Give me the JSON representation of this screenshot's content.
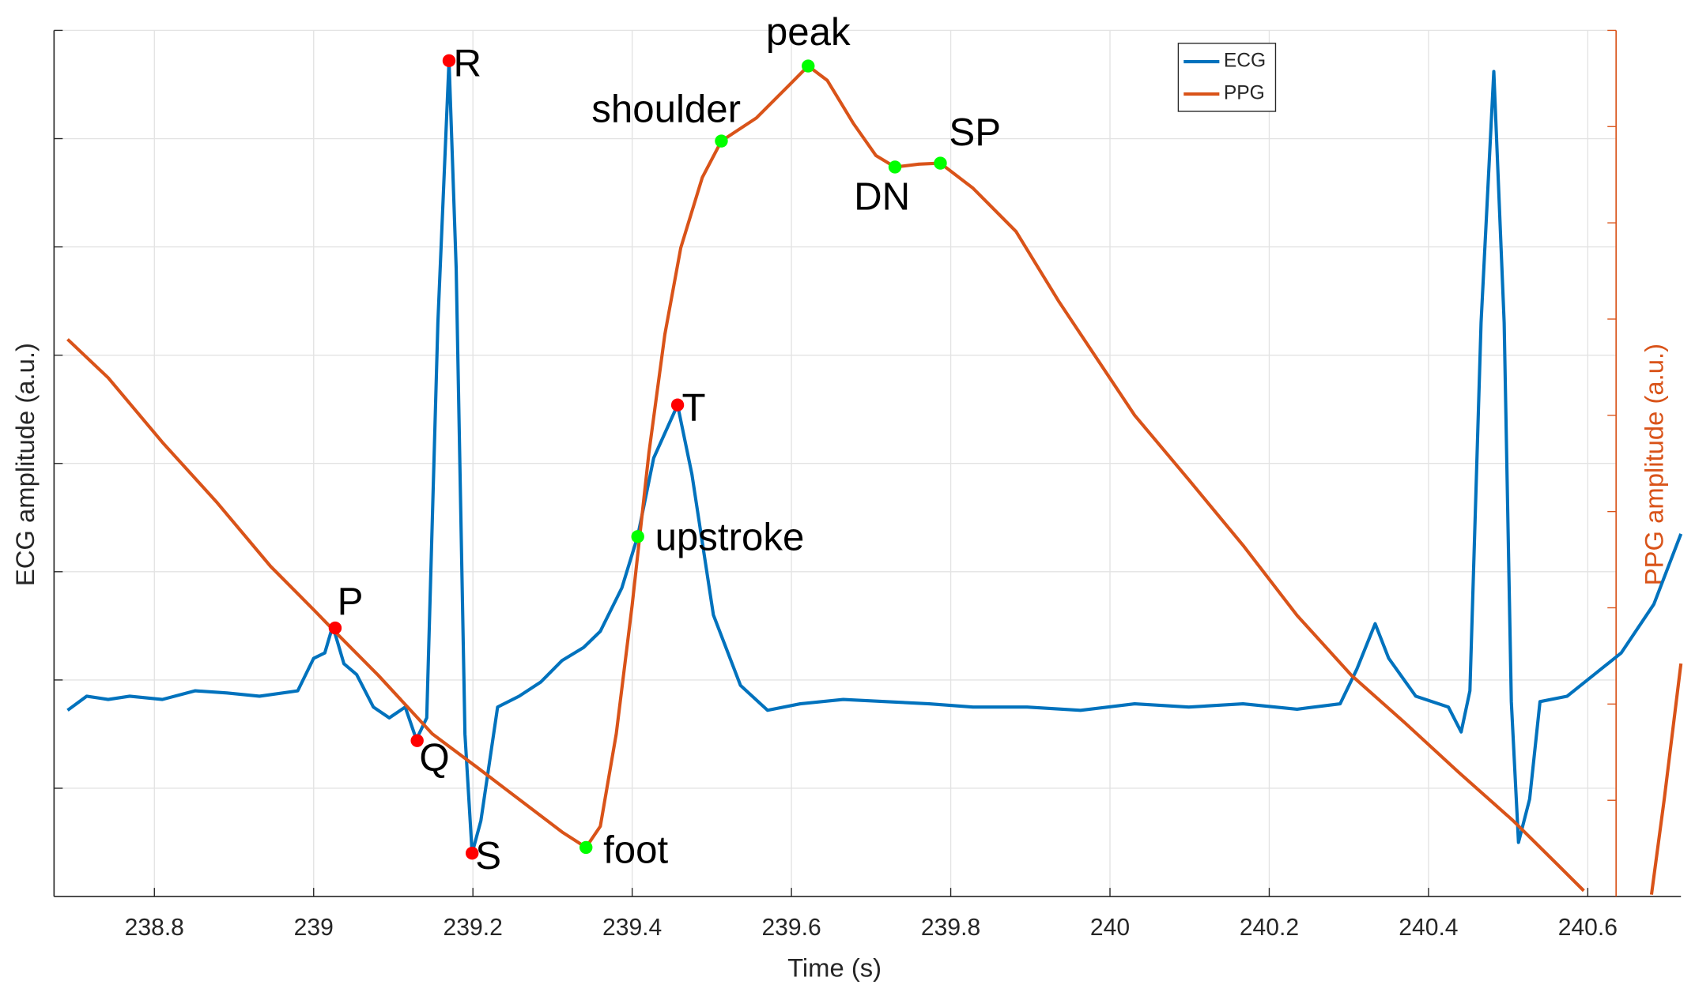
{
  "chart_data": {
    "type": "line",
    "xlabel": "Time (s)",
    "ylabel": "ECG amplitude (a.u.)",
    "y2label": "PPG amplitude (a.u.)",
    "xlim": [
      238.674,
      240.717
    ],
    "xticks": [
      238.8,
      239,
      239.2,
      239.4,
      239.6,
      239.8,
      240,
      240.2,
      240.4,
      240.6
    ],
    "ylim": [
      0,
      8
    ],
    "yticks": [
      1,
      2,
      3,
      4,
      5,
      6,
      7,
      8
    ],
    "y2lim": [
      0,
      9
    ],
    "y2ticks": [
      1,
      2,
      3,
      4,
      5,
      6,
      7,
      8,
      9
    ],
    "grid": true,
    "series": [
      {
        "name": "ECG",
        "color": "#0072bd",
        "x": [
          238.691,
          238.715,
          238.742,
          238.769,
          238.81,
          238.851,
          238.891,
          238.932,
          238.98,
          239.0,
          239.014,
          239.024,
          239.038,
          239.054,
          239.075,
          239.095,
          239.115,
          239.129,
          239.142,
          239.156,
          239.17,
          239.179,
          239.19,
          239.199,
          239.21,
          239.231,
          239.258,
          239.285,
          239.312,
          239.339,
          239.36,
          239.387,
          239.407,
          239.427,
          239.457,
          239.475,
          239.502,
          239.536,
          239.57,
          239.611,
          239.665,
          239.719,
          239.773,
          239.828,
          239.896,
          239.963,
          240.031,
          240.099,
          240.167,
          240.235,
          240.289,
          240.31,
          240.333,
          240.35,
          240.384,
          240.425,
          240.441,
          240.452,
          240.466,
          240.482,
          240.495,
          240.504,
          240.513,
          240.527,
          240.54,
          240.574,
          240.608,
          240.642,
          240.683,
          240.717
        ],
        "values": [
          1.72,
          1.85,
          1.82,
          1.85,
          1.82,
          1.9,
          1.88,
          1.85,
          1.9,
          2.2,
          2.25,
          2.5,
          2.15,
          2.05,
          1.75,
          1.65,
          1.75,
          1.45,
          1.65,
          5.3,
          7.72,
          5.8,
          1.5,
          0.4,
          0.7,
          1.75,
          1.85,
          1.98,
          2.18,
          2.3,
          2.45,
          2.85,
          3.33,
          4.05,
          4.54,
          3.9,
          2.6,
          1.95,
          1.72,
          1.78,
          1.82,
          1.8,
          1.78,
          1.75,
          1.75,
          1.72,
          1.78,
          1.75,
          1.78,
          1.73,
          1.78,
          2.1,
          2.52,
          2.2,
          1.85,
          1.75,
          1.52,
          1.9,
          5.3,
          7.62,
          5.3,
          1.8,
          0.5,
          0.9,
          1.8,
          1.85,
          2.05,
          2.25,
          2.7,
          3.35
        ]
      },
      {
        "name": "PPG",
        "color": "#d95319",
        "axis": "y2",
        "x": [
          238.691,
          238.742,
          238.81,
          238.878,
          238.946,
          239.0,
          239.027,
          239.081,
          239.149,
          239.204,
          239.258,
          239.312,
          239.342,
          239.36,
          239.38,
          239.4,
          239.421,
          239.441,
          239.461,
          239.488,
          239.512,
          239.556,
          239.597,
          239.621,
          239.645,
          239.678,
          239.706,
          239.73,
          239.76,
          239.787,
          239.828,
          239.882,
          239.936,
          240.031,
          240.099,
          240.167,
          240.235,
          240.303,
          240.371,
          240.438,
          240.506,
          240.561,
          240.595,
          240.64,
          240.68,
          240.696,
          240.717
        ],
        "values": [
          5.79,
          5.39,
          4.72,
          4.1,
          3.43,
          2.98,
          2.75,
          2.3,
          1.69,
          1.35,
          1.01,
          0.67,
          0.51,
          0.73,
          1.69,
          3.03,
          4.61,
          5.84,
          6.74,
          7.47,
          7.85,
          8.09,
          8.43,
          8.63,
          8.48,
          8.03,
          7.7,
          7.58,
          7.61,
          7.62,
          7.36,
          6.91,
          6.18,
          5.0,
          4.33,
          3.65,
          2.92,
          2.3,
          1.8,
          1.29,
          0.79,
          0.34,
          0.06,
          null,
          0.02,
          1.01,
          2.42
        ]
      }
    ],
    "annotations": [
      {
        "label": "P",
        "x": 239.027,
        "y": 2.48,
        "color": "#ff0000"
      },
      {
        "label": "Q",
        "x": 239.13,
        "y": 1.44,
        "color": "#ff0000"
      },
      {
        "label": "R",
        "x": 239.17,
        "y": 7.72,
        "color": "#ff0000"
      },
      {
        "label": "S",
        "x": 239.199,
        "y": 0.4,
        "color": "#ff0000"
      },
      {
        "label": "T",
        "x": 239.457,
        "y": 4.54,
        "color": "#ff0000"
      },
      {
        "label": "foot",
        "x": 239.342,
        "y": 0.51,
        "axis": "y2",
        "color": "#00ff00"
      },
      {
        "label": "upstroke",
        "x": 239.407,
        "y": 3.74,
        "axis": "y2",
        "color": "#00ff00"
      },
      {
        "label": "shoulder",
        "x": 239.512,
        "y": 7.85,
        "axis": "y2",
        "color": "#00ff00"
      },
      {
        "label": "peak",
        "x": 239.621,
        "y": 8.63,
        "axis": "y2",
        "color": "#00ff00"
      },
      {
        "label": "DN",
        "x": 239.73,
        "y": 7.58,
        "axis": "y2",
        "color": "#00ff00"
      },
      {
        "label": "SP",
        "x": 239.787,
        "y": 7.62,
        "axis": "y2",
        "color": "#00ff00"
      }
    ]
  }
}
